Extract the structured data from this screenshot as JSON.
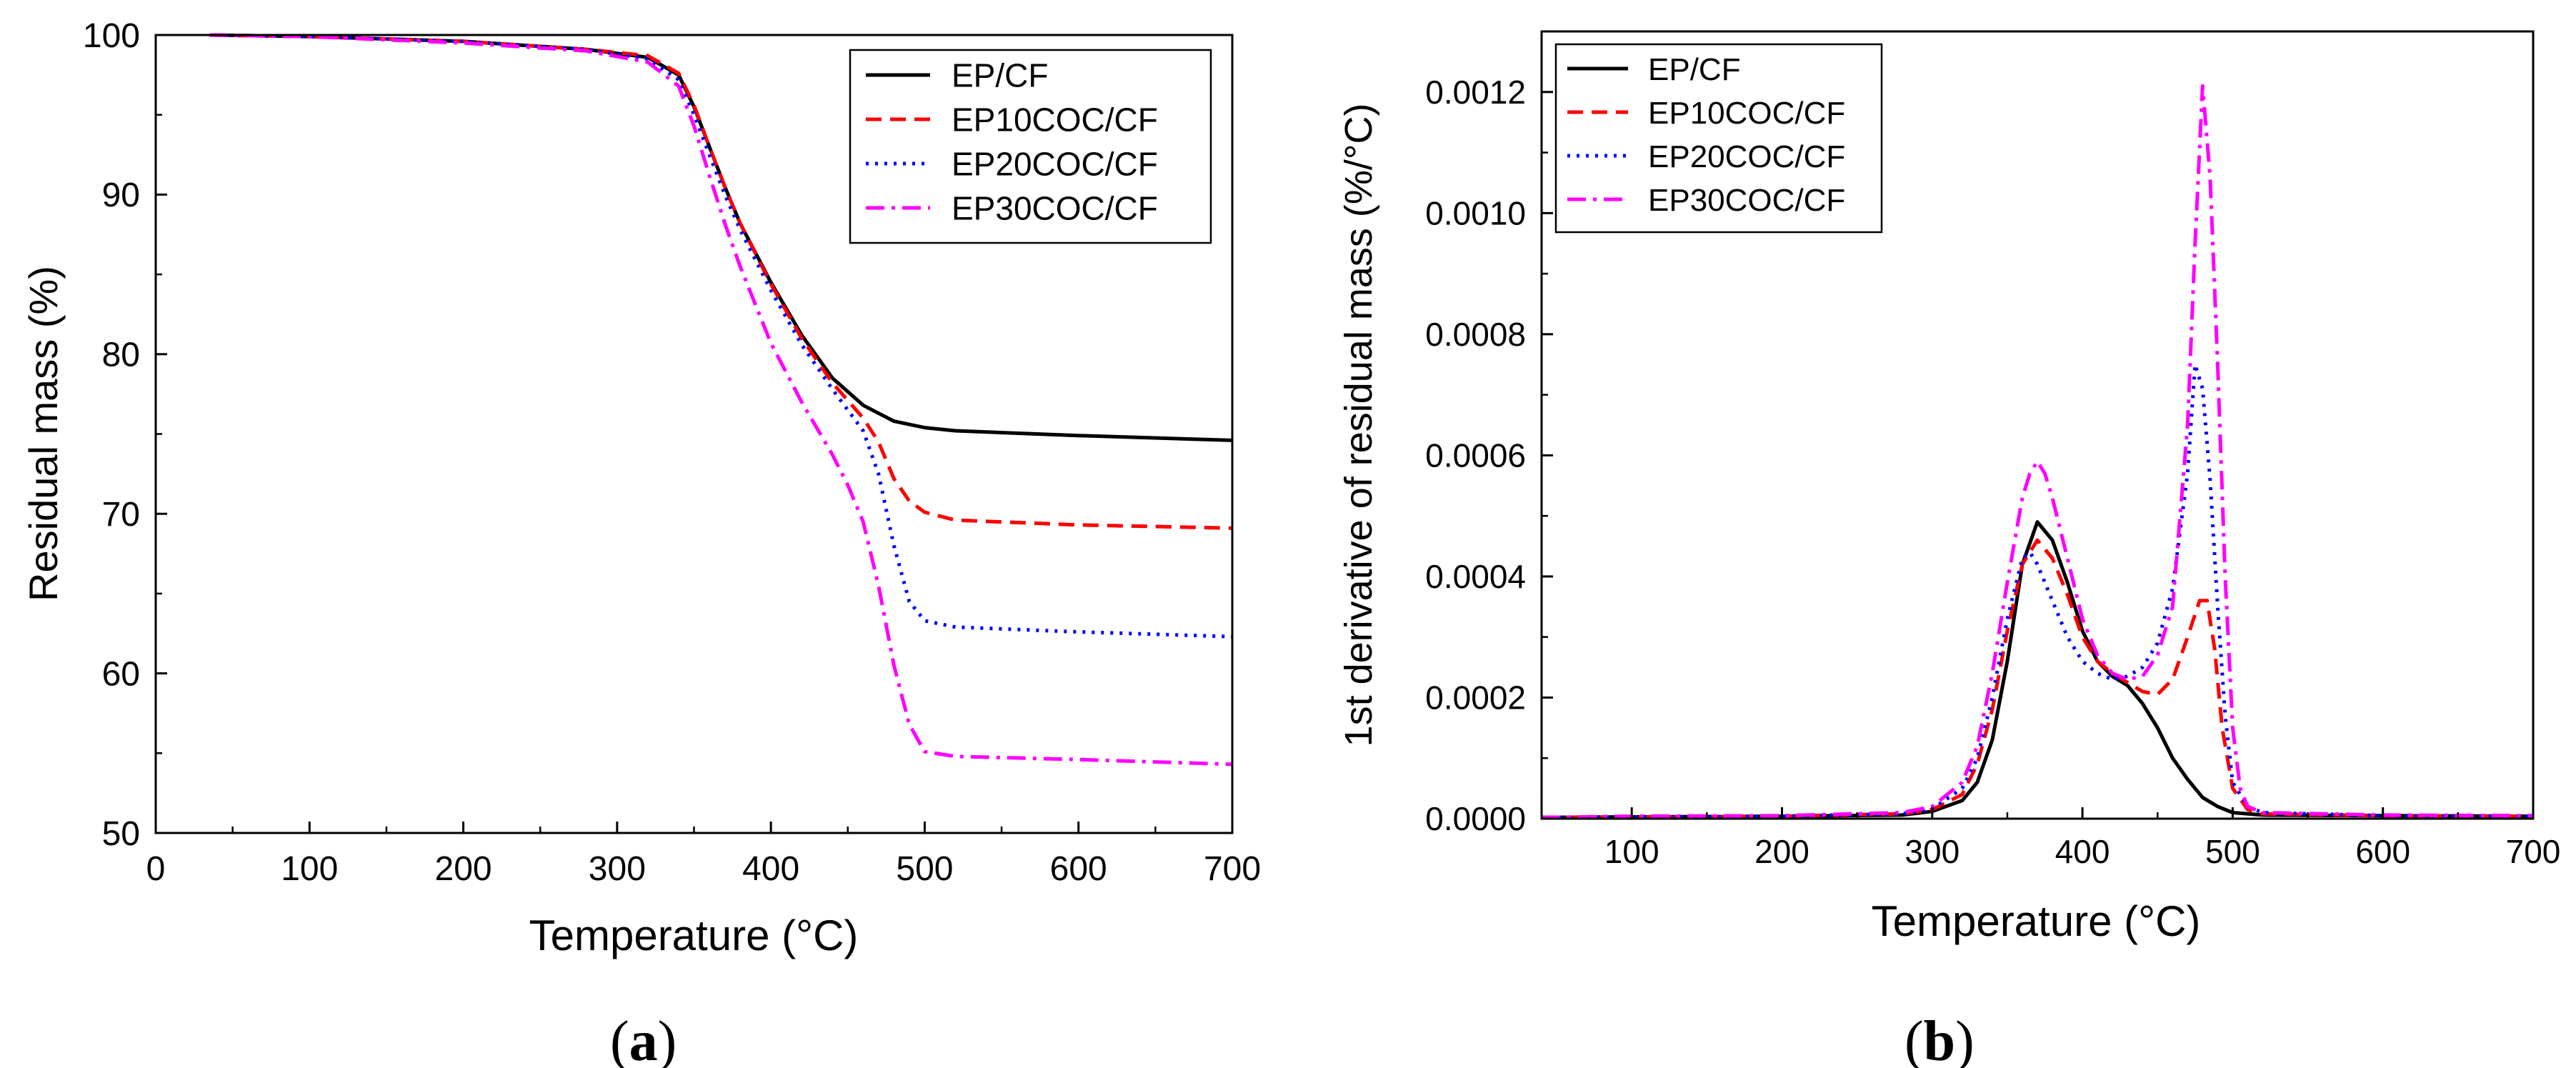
{
  "chart_data": [
    {
      "panel": "a",
      "type": "line",
      "caption": "(a)",
      "caption_letter": "a",
      "title": "",
      "xlabel": "Temperature (°C)",
      "ylabel": "Residual mass (%)",
      "xlim": [
        0,
        700
      ],
      "ylim": [
        50,
        100
      ],
      "xticks": [
        0,
        100,
        200,
        300,
        400,
        500,
        600,
        700
      ],
      "yticks": [
        50,
        60,
        70,
        80,
        90,
        100
      ],
      "legend_position": "top-right",
      "grid": false,
      "series": [
        {
          "name": "EP/CF",
          "color": "#000000",
          "dash": "solid",
          "x": [
            35,
            100,
            200,
            280,
            320,
            340,
            350,
            360,
            370,
            380,
            400,
            420,
            440,
            460,
            480,
            500,
            520,
            600,
            700
          ],
          "y": [
            100,
            99.9,
            99.6,
            99.1,
            98.6,
            97.5,
            95.5,
            93,
            90.5,
            88.2,
            84.5,
            81.2,
            78.5,
            76.8,
            75.8,
            75.4,
            75.2,
            74.9,
            74.6
          ]
        },
        {
          "name": "EP10COC/CF",
          "color": "#ff0000",
          "dash": "dashed",
          "x": [
            35,
            100,
            200,
            280,
            320,
            340,
            350,
            360,
            370,
            380,
            400,
            420,
            440,
            460,
            470,
            480,
            490,
            500,
            520,
            600,
            700
          ],
          "y": [
            100,
            99.9,
            99.6,
            99.1,
            98.7,
            97.6,
            95.6,
            93,
            90.5,
            88.2,
            84.4,
            81,
            78.2,
            76,
            74.5,
            72.2,
            70.8,
            70.1,
            69.6,
            69.3,
            69.1
          ]
        },
        {
          "name": "EP20COC/CF",
          "color": "#0000ff",
          "dash": "dotted",
          "x": [
            35,
            100,
            200,
            280,
            320,
            340,
            350,
            360,
            370,
            380,
            400,
            420,
            440,
            460,
            470,
            480,
            490,
            500,
            520,
            600,
            700
          ],
          "y": [
            100,
            99.9,
            99.6,
            99.1,
            98.5,
            97.2,
            95,
            92.5,
            90,
            87.8,
            84,
            80.6,
            77.8,
            75.2,
            72.5,
            68,
            64.5,
            63.3,
            62.9,
            62.6,
            62.3
          ]
        },
        {
          "name": "EP30COC/CF",
          "color": "#ff00ff",
          "dash": "dashdot",
          "x": [
            35,
            100,
            200,
            280,
            320,
            340,
            350,
            360,
            370,
            380,
            400,
            420,
            440,
            450,
            460,
            470,
            480,
            490,
            500,
            520,
            600,
            700
          ],
          "y": [
            100,
            99.9,
            99.5,
            99,
            98.3,
            96.8,
            94.3,
            91.2,
            88.2,
            85.5,
            80.7,
            77,
            73.7,
            71.8,
            69.5,
            65.5,
            60.5,
            56.8,
            55.1,
            54.8,
            54.6,
            54.3
          ]
        }
      ]
    },
    {
      "panel": "b",
      "type": "line",
      "caption": "(b)",
      "caption_letter": "b",
      "title": "",
      "xlabel": "Temperature (°C)",
      "ylabel": "1st derivative of residual mass (%/°C)",
      "xlim": [
        40,
        700
      ],
      "ylim": [
        0,
        0.0013
      ],
      "xticks": [
        100,
        200,
        300,
        400,
        500,
        600,
        700
      ],
      "yticks": [
        "0.0000",
        "0.0002",
        "0.0004",
        "0.0006",
        "0.0008",
        "0.0010",
        "0.0012"
      ],
      "legend_position": "top-left",
      "grid": false,
      "series": [
        {
          "name": "EP/CF",
          "color": "#000000",
          "dash": "solid",
          "x": [
            40,
            100,
            200,
            280,
            300,
            320,
            330,
            340,
            350,
            360,
            370,
            380,
            390,
            400,
            410,
            420,
            430,
            440,
            450,
            460,
            470,
            480,
            490,
            500,
            520,
            600,
            700
          ],
          "y": [
            2e-06,
            3e-06,
            4e-06,
            6e-06,
            1.2e-05,
            3e-05,
            6e-05,
            0.00013,
            0.00026,
            0.00042,
            0.00049,
            0.00046,
            0.00039,
            0.00031,
            0.00026,
            0.000235,
            0.00022,
            0.00019,
            0.00015,
            0.0001,
            6.5e-05,
            3.5e-05,
            2e-05,
            1e-05,
            6e-06,
            5e-06,
            4e-06
          ]
        },
        {
          "name": "EP10COC/CF",
          "color": "#ff0000",
          "dash": "dashed",
          "x": [
            40,
            100,
            200,
            280,
            300,
            320,
            330,
            340,
            350,
            360,
            370,
            380,
            390,
            400,
            410,
            420,
            430,
            440,
            450,
            460,
            470,
            478,
            483,
            488,
            493,
            500,
            510,
            520,
            600,
            700
          ],
          "y": [
            2e-06,
            3e-06,
            4e-06,
            8e-06,
            1.5e-05,
            4e-05,
            9e-05,
            0.00018,
            0.00031,
            0.00042,
            0.00046,
            0.00043,
            0.00037,
            0.0003,
            0.00026,
            0.00024,
            0.000225,
            0.00021,
            0.000205,
            0.00023,
            0.0003,
            0.00036,
            0.00036,
            0.00028,
            0.00015,
            5e-05,
            1.5e-05,
            8e-06,
            5e-06,
            4e-06
          ]
        },
        {
          "name": "EP20COC/CF",
          "color": "#0000ff",
          "dash": "dotted",
          "x": [
            40,
            100,
            200,
            280,
            300,
            320,
            330,
            340,
            350,
            360,
            365,
            370,
            380,
            390,
            400,
            410,
            420,
            430,
            440,
            450,
            460,
            470,
            475,
            480,
            485,
            490,
            495,
            500,
            510,
            520,
            600,
            700
          ],
          "y": [
            2e-06,
            3e-06,
            4e-06,
            8e-06,
            1.6e-05,
            5e-05,
            0.0001,
            0.0002,
            0.00033,
            0.00043,
            0.00044,
            0.00042,
            0.00036,
            0.0003,
            0.00026,
            0.00024,
            0.00023,
            0.000235,
            0.00025,
            0.00029,
            0.00038,
            0.00057,
            0.00075,
            0.00071,
            0.00056,
            0.00035,
            0.00017,
            6e-05,
            2e-05,
            1e-05,
            5e-06,
            4e-06
          ]
        },
        {
          "name": "EP30COC/CF",
          "color": "#ff00ff",
          "dash": "dashdot",
          "x": [
            40,
            100,
            200,
            280,
            300,
            320,
            330,
            340,
            350,
            360,
            365,
            370,
            375,
            380,
            390,
            400,
            410,
            420,
            430,
            440,
            450,
            460,
            470,
            475,
            480,
            485,
            490,
            495,
            500,
            505,
            510,
            520,
            600,
            700
          ],
          "y": [
            2e-06,
            4e-06,
            5e-06,
            1e-05,
            2e-05,
            6e-05,
            0.00012,
            0.00024,
            0.00039,
            0.00053,
            0.00057,
            0.00059,
            0.00057,
            0.00053,
            0.00043,
            0.00033,
            0.00027,
            0.00024,
            0.00023,
            0.000235,
            0.00027,
            0.00035,
            0.00065,
            0.00095,
            0.00121,
            0.00106,
            0.00075,
            0.0004,
            0.00015,
            5e-05,
            2e-05,
            1e-05,
            6e-06,
            5e-06
          ]
        }
      ]
    }
  ]
}
